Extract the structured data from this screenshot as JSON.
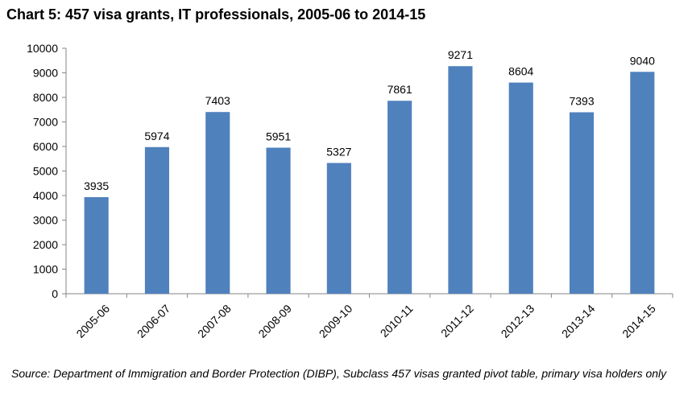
{
  "colors": {
    "bar": "#4f81bd",
    "axis": "#868686",
    "text": "#000000"
  },
  "chart_data": {
    "type": "bar",
    "title": "Chart 5: 457 visa grants, IT professionals, 2005-06 to 2014-15",
    "categories": [
      "2005-06",
      "2006-07",
      "2007-08",
      "2008-09",
      "2009-10",
      "2010-11",
      "2011-12",
      "2012-13",
      "2013-14",
      "2014-15"
    ],
    "values": [
      3935,
      5974,
      7403,
      5951,
      5327,
      7861,
      9271,
      8604,
      7393,
      9040
    ],
    "data_labels": [
      "3935",
      "5974",
      "7403",
      "5951",
      "5327",
      "7861",
      "9271",
      "8604",
      "7393",
      "9040"
    ],
    "ylim": [
      0,
      10000
    ],
    "yticks": [
      0,
      1000,
      2000,
      3000,
      4000,
      5000,
      6000,
      7000,
      8000,
      9000,
      10000
    ],
    "ytick_labels": [
      "0",
      "1000",
      "2000",
      "3000",
      "4000",
      "5000",
      "6000",
      "7000",
      "8000",
      "9000",
      "10000"
    ],
    "grid": false,
    "legend": "none"
  },
  "source_note": "Source: Department of Immigration and Border Protection (DIBP), Subclass 457 visas granted pivot table, primary visa holders only"
}
